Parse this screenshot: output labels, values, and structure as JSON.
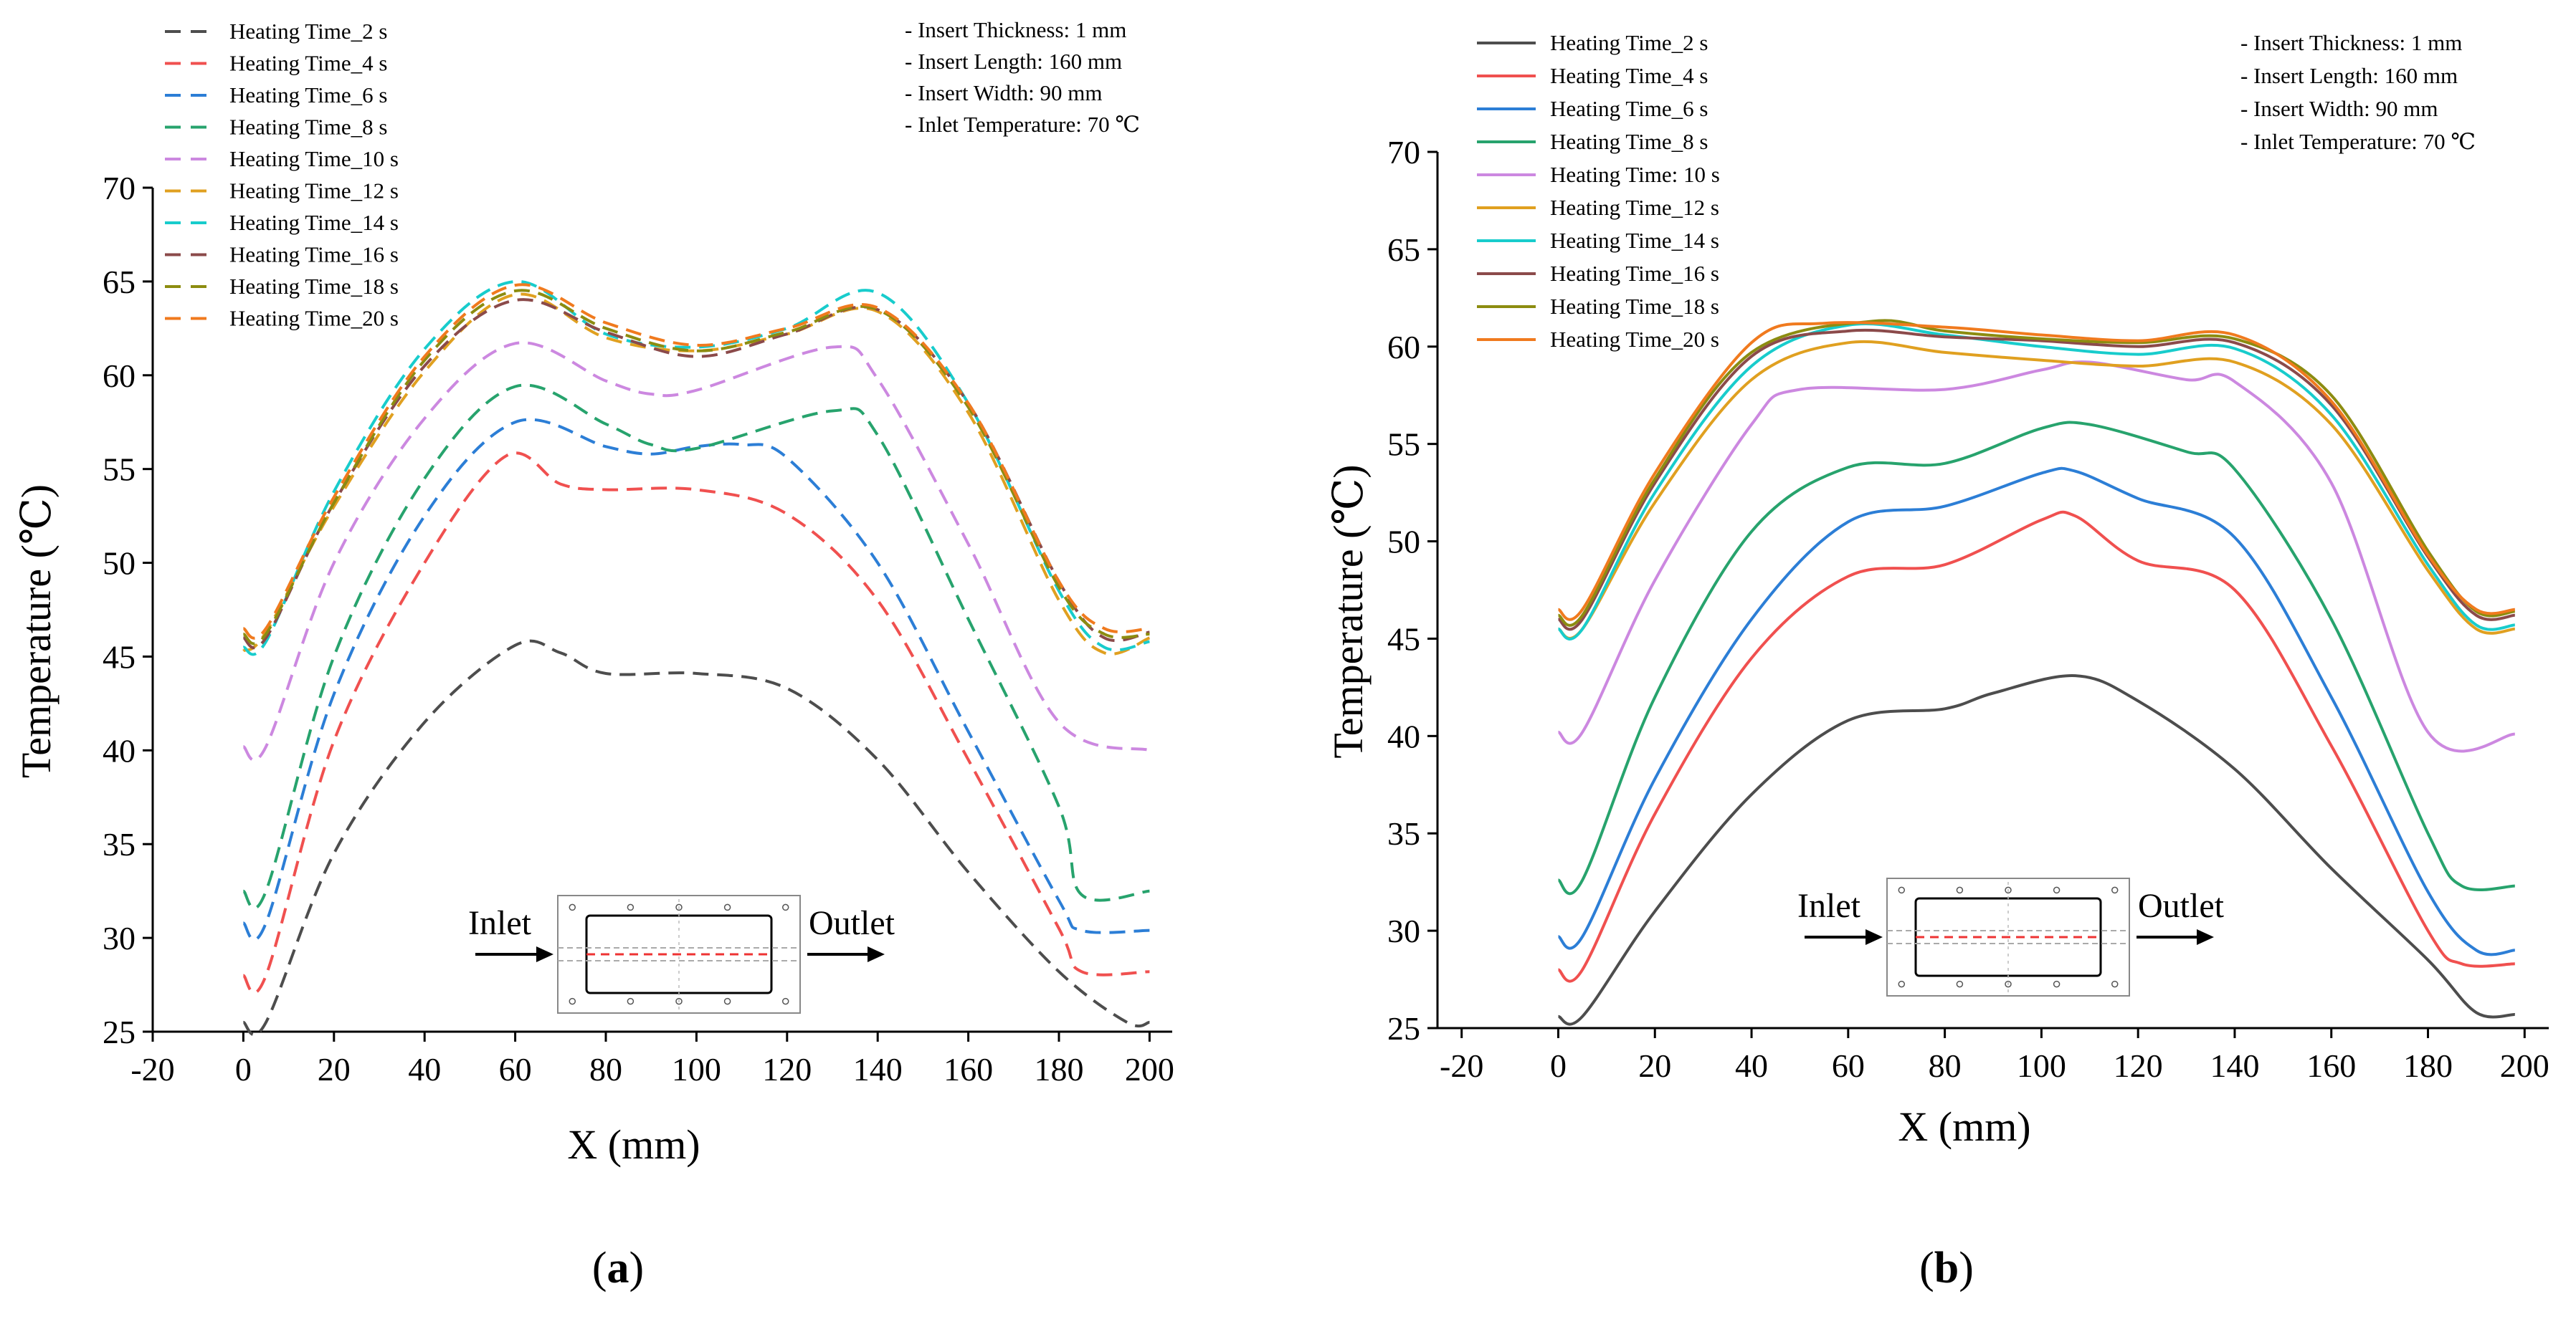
{
  "panels": [
    {
      "label": "a",
      "line_style": "dashed",
      "legend": [
        "Heating Time_2 s",
        "Heating Time_4 s",
        "Heating Time_6 s",
        "Heating Time_8 s",
        "Heating Time_10 s",
        "Heating Time_12 s",
        "Heating Time_14 s",
        "Heating Time_16 s",
        "Heating Time_18 s",
        "Heating Time_20 s"
      ],
      "notes": [
        "- Insert Thickness: 1 mm",
        "- Insert Length: 160 mm",
        "- Insert Width: 90 mm",
        "- Inlet Temperature: 70 ℃"
      ],
      "inset": {
        "inlet_label": "Inlet",
        "outlet_label": "Outlet"
      }
    },
    {
      "label": "b",
      "line_style": "solid",
      "legend": [
        "Heating Time_2 s",
        "Heating Time_4 s",
        "Heating Time_6 s",
        "Heating Time_8 s",
        "Heating Time: 10 s",
        "Heating Time_12 s",
        "Heating Time_14 s",
        "Heating Time_16 s",
        "Heating Time_18 s",
        "Heating Time_20 s"
      ],
      "notes": [
        "- Insert Thickness: 1 mm",
        "- Insert Length: 160 mm",
        "- Insert Width: 90 mm",
        "- Inlet Temperature: 70 ℃"
      ],
      "inset": {
        "inlet_label": "Inlet",
        "outlet_label": "Outlet"
      }
    }
  ],
  "colors": [
    "#4d4d4d",
    "#f0504f",
    "#2c7ed6",
    "#27a36d",
    "#cc88e0",
    "#e0a020",
    "#18cccc",
    "#8b4a4a",
    "#8c8c10",
    "#f07a1e"
  ],
  "chart_data": [
    {
      "type": "line",
      "panel": "a",
      "xlabel": "X (mm)",
      "ylabel": "Temperature (℃)",
      "xlim": [
        -20,
        205
      ],
      "ylim": [
        25,
        70
      ],
      "xticks": [
        -20,
        0,
        20,
        40,
        60,
        80,
        100,
        120,
        140,
        160,
        180,
        200
      ],
      "yticks": [
        25,
        30,
        35,
        40,
        45,
        50,
        55,
        60,
        65,
        70
      ],
      "series": [
        {
          "name": "Heating Time_2 s",
          "x": [
            0,
            5,
            20,
            40,
            60,
            70,
            80,
            100,
            120,
            140,
            160,
            180,
            195,
            200
          ],
          "y": [
            25.5,
            25.5,
            34.5,
            41.5,
            45.6,
            45.2,
            44.1,
            44.1,
            43.3,
            39.5,
            33.5,
            28.2,
            25.5,
            25.5
          ]
        },
        {
          "name": "Heating Time_4 s",
          "x": [
            0,
            5,
            20,
            40,
            58,
            70,
            80,
            100,
            120,
            140,
            160,
            180,
            185,
            200
          ],
          "y": [
            28,
            28,
            40.5,
            50,
            55.7,
            54.2,
            53.9,
            53.9,
            52.6,
            48,
            39.5,
            30.5,
            28.2,
            28.2
          ]
        },
        {
          "name": "Heating Time_6 s",
          "x": [
            0,
            5,
            20,
            40,
            60,
            80,
            90,
            100,
            110,
            120,
            140,
            160,
            180,
            185,
            200
          ],
          "y": [
            30.8,
            30.8,
            43,
            52.5,
            57.5,
            56.2,
            55.8,
            56.2,
            56.3,
            55.6,
            50,
            41,
            32,
            30.4,
            30.4
          ]
        },
        {
          "name": "Heating Time_8 s",
          "x": [
            0,
            5,
            20,
            40,
            60,
            80,
            90,
            100,
            130,
            140,
            160,
            180,
            185,
            200
          ],
          "y": [
            32.5,
            32.5,
            45,
            54.5,
            59.4,
            57.4,
            56.3,
            56.1,
            58.1,
            56.8,
            47,
            37,
            32.3,
            32.5
          ]
        },
        {
          "name": "Heating Time_10 s",
          "x": [
            0,
            5,
            20,
            40,
            60,
            80,
            90,
            100,
            130,
            140,
            160,
            180,
            200
          ],
          "y": [
            40.2,
            40.2,
            50,
            57.7,
            61.7,
            59.7,
            59,
            59.2,
            61.5,
            59.8,
            51,
            41.5,
            40
          ]
        },
        {
          "name": "Heating Time_12 s",
          "x": [
            0,
            5,
            20,
            40,
            60,
            80,
            100,
            120,
            140,
            160,
            180,
            190,
            200
          ],
          "y": [
            45.3,
            46.3,
            53,
            60.2,
            64.3,
            62,
            61.3,
            62.2,
            63.4,
            58,
            48,
            45.2,
            46
          ]
        },
        {
          "name": "Heating Time_14 s",
          "x": [
            0,
            5,
            20,
            40,
            60,
            80,
            100,
            120,
            140,
            160,
            180,
            190,
            200
          ],
          "y": [
            45.5,
            45.8,
            53.8,
            61.4,
            65,
            62.2,
            61.5,
            62.5,
            64.4,
            58.5,
            48.5,
            45.5,
            45.8
          ]
        },
        {
          "name": "Heating Time_16 s",
          "x": [
            0,
            5,
            20,
            40,
            60,
            80,
            100,
            120,
            140,
            160,
            180,
            190,
            200
          ],
          "y": [
            46,
            46,
            53.2,
            60.5,
            64,
            62.3,
            61,
            62.2,
            63.5,
            58.5,
            49,
            46,
            46.3
          ]
        },
        {
          "name": "Heating Time_18 s",
          "x": [
            0,
            5,
            20,
            40,
            60,
            80,
            100,
            120,
            140,
            160,
            180,
            190,
            200
          ],
          "y": [
            46.2,
            46.2,
            53.2,
            60.8,
            64.5,
            62.5,
            61.3,
            62.3,
            63.5,
            58.3,
            48.7,
            46.2,
            46.2
          ]
        },
        {
          "name": "Heating Time_20 s",
          "x": [
            0,
            5,
            20,
            40,
            60,
            80,
            100,
            120,
            140,
            160,
            180,
            190,
            200
          ],
          "y": [
            46.5,
            46.5,
            53.5,
            61,
            64.8,
            62.8,
            61.6,
            62.5,
            63.6,
            58.5,
            49,
            46.5,
            46.5
          ]
        }
      ]
    },
    {
      "type": "line",
      "panel": "b",
      "xlabel": "X (mm)",
      "ylabel": "Temperature (℃)",
      "xlim": [
        -25,
        205
      ],
      "ylim": [
        25,
        70
      ],
      "xticks": [
        -20,
        0,
        20,
        40,
        60,
        80,
        100,
        120,
        140,
        160,
        180,
        200
      ],
      "yticks": [
        25,
        30,
        35,
        40,
        45,
        50,
        55,
        60,
        65,
        70
      ],
      "series": [
        {
          "name": "Heating Time_2 s",
          "x": [
            0,
            5,
            20,
            40,
            60,
            80,
            90,
            107,
            120,
            140,
            160,
            180,
            190,
            198
          ],
          "y": [
            25.6,
            25.6,
            31,
            37,
            40.8,
            41.4,
            42.2,
            43.1,
            41.8,
            38.3,
            33.2,
            28.5,
            25.8,
            25.7
          ]
        },
        {
          "name": "Heating Time_4 s",
          "x": [
            0,
            5,
            20,
            40,
            60,
            80,
            100,
            107,
            120,
            140,
            160,
            180,
            187,
            198
          ],
          "y": [
            28,
            28,
            36,
            44,
            48.2,
            48.8,
            51.1,
            51.3,
            49,
            47.5,
            39.5,
            30,
            28.3,
            28.3
          ]
        },
        {
          "name": "Heating Time_6 s",
          "x": [
            0,
            5,
            20,
            40,
            60,
            80,
            100,
            107,
            120,
            140,
            160,
            180,
            190,
            198
          ],
          "y": [
            29.7,
            29.7,
            37.8,
            46,
            51,
            51.8,
            53.5,
            53.6,
            52.2,
            50.2,
            42,
            32,
            29,
            29
          ]
        },
        {
          "name": "Heating Time_8 s",
          "x": [
            0,
            5,
            20,
            40,
            60,
            80,
            100,
            110,
            130,
            140,
            160,
            180,
            187,
            198
          ],
          "y": [
            32.6,
            32.6,
            42,
            50.5,
            53.8,
            54,
            55.8,
            56,
            54.6,
            53.7,
            46,
            35,
            32.3,
            32.3
          ]
        },
        {
          "name": "Heating Time: 10 s",
          "x": [
            0,
            5,
            20,
            40,
            50,
            80,
            100,
            110,
            130,
            140,
            160,
            180,
            198
          ],
          "y": [
            40.2,
            40.2,
            48,
            56,
            57.8,
            57.8,
            58.8,
            59.2,
            58.3,
            58.2,
            53,
            40.2,
            40.1
          ]
        },
        {
          "name": "Heating Time_12 s",
          "x": [
            0,
            5,
            20,
            40,
            60,
            80,
            100,
            120,
            140,
            160,
            180,
            190,
            198
          ],
          "y": [
            45.5,
            45.5,
            52,
            58.3,
            60.2,
            59.7,
            59.3,
            59,
            59.2,
            56,
            48.5,
            45.5,
            45.5
          ]
        },
        {
          "name": "Heating Time_14 s",
          "x": [
            0,
            5,
            20,
            40,
            60,
            80,
            100,
            120,
            140,
            160,
            180,
            190,
            198
          ],
          "y": [
            45.5,
            45.5,
            52.5,
            59,
            61.1,
            60.6,
            60,
            59.6,
            59.9,
            56.5,
            48.8,
            45.7,
            45.7
          ]
        },
        {
          "name": "Heating Time_16 s",
          "x": [
            0,
            5,
            20,
            40,
            60,
            80,
            100,
            120,
            140,
            160,
            180,
            190,
            198
          ],
          "y": [
            46,
            46,
            53,
            59.5,
            60.8,
            60.5,
            60.3,
            60,
            60.2,
            57,
            49.2,
            46.2,
            46.2
          ]
        },
        {
          "name": "Heating Time_18 s",
          "x": [
            0,
            5,
            20,
            40,
            65,
            80,
            100,
            120,
            140,
            160,
            180,
            190,
            198
          ],
          "y": [
            46.2,
            46.2,
            53.2,
            59.7,
            61.3,
            60.8,
            60.4,
            60.2,
            60.4,
            57.5,
            49.5,
            46.4,
            46.4
          ]
        },
        {
          "name": "Heating Time_20 s",
          "x": [
            0,
            5,
            20,
            40,
            55,
            80,
            100,
            120,
            140,
            160,
            180,
            190,
            198
          ],
          "y": [
            46.5,
            46.5,
            53.5,
            60.2,
            61.2,
            61,
            60.6,
            60.3,
            60.6,
            57.2,
            49.3,
            46.5,
            46.5
          ]
        }
      ]
    }
  ]
}
